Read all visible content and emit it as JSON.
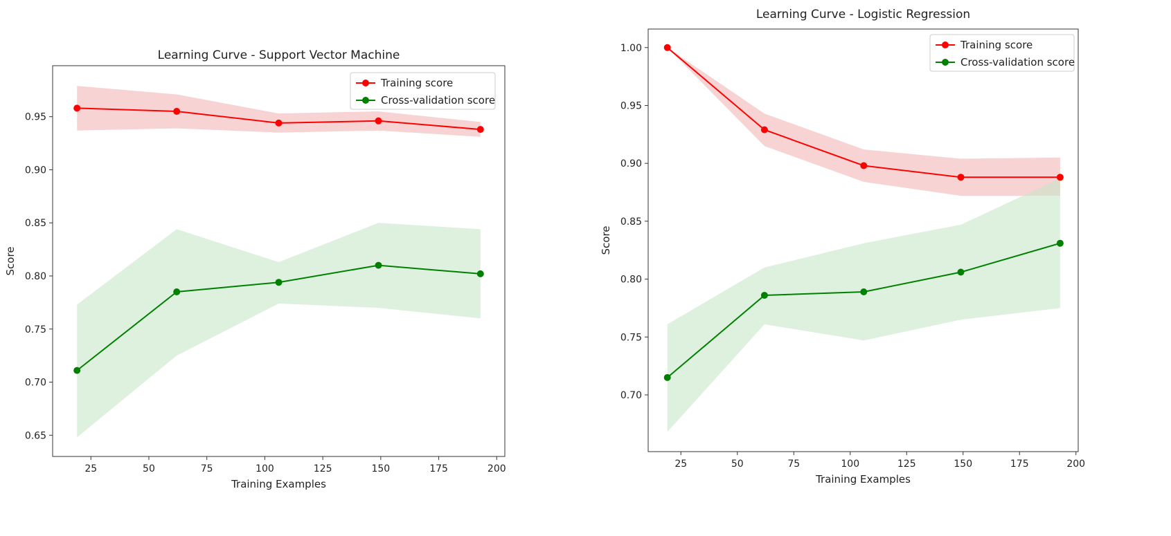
{
  "chart_data": [
    {
      "type": "line",
      "title": "Learning Curve - Support Vector Machine",
      "xlabel": "Training Examples",
      "ylabel": "Score",
      "x": [
        19,
        62,
        106,
        149,
        193
      ],
      "xlim": [
        8.5,
        203.5
      ],
      "ylim": [
        0.63,
        0.998
      ],
      "xticks": [
        25,
        50,
        75,
        100,
        125,
        150,
        175,
        200
      ],
      "yticks": [
        0.65,
        0.7,
        0.75,
        0.8,
        0.85,
        0.9,
        0.95
      ],
      "grid": false,
      "legend_position": "top-right",
      "series": [
        {
          "name": "Training score",
          "color": "#ff0000",
          "band_color": "#f4b6b6",
          "values": [
            0.958,
            0.955,
            0.944,
            0.946,
            0.938
          ],
          "upper": [
            0.979,
            0.971,
            0.953,
            0.955,
            0.945
          ],
          "lower": [
            0.937,
            0.939,
            0.935,
            0.937,
            0.931
          ]
        },
        {
          "name": "Cross-validation score",
          "color": "#008000",
          "band_color": "#c8e6c8",
          "values": [
            0.711,
            0.785,
            0.794,
            0.81,
            0.802
          ],
          "upper": [
            0.773,
            0.844,
            0.813,
            0.85,
            0.844
          ],
          "lower": [
            0.648,
            0.725,
            0.774,
            0.77,
            0.76
          ]
        }
      ]
    },
    {
      "type": "line",
      "title": "Learning Curve - Logistic Regression",
      "xlabel": "Training Examples",
      "ylabel": "Score",
      "x": [
        19,
        62,
        106,
        149,
        193
      ],
      "xlim": [
        10.5,
        201.0
      ],
      "ylim": [
        0.651,
        1.016
      ],
      "xticks": [
        25,
        50,
        75,
        100,
        125,
        150,
        175,
        200
      ],
      "yticks": [
        0.7,
        0.75,
        0.8,
        0.85,
        0.9,
        0.95,
        1.0
      ],
      "grid": false,
      "legend_position": "top-right",
      "series": [
        {
          "name": "Training score",
          "color": "#ff0000",
          "band_color": "#f4b6b6",
          "values": [
            1.0,
            0.929,
            0.898,
            0.888,
            0.888
          ],
          "upper": [
            1.0,
            0.943,
            0.912,
            0.904,
            0.905
          ],
          "lower": [
            1.0,
            0.915,
            0.884,
            0.872,
            0.872
          ]
        },
        {
          "name": "Cross-validation score",
          "color": "#008000",
          "band_color": "#c8e6c8",
          "values": [
            0.715,
            0.786,
            0.789,
            0.806,
            0.831
          ],
          "upper": [
            0.761,
            0.81,
            0.831,
            0.847,
            0.887
          ],
          "lower": [
            0.668,
            0.761,
            0.747,
            0.765,
            0.775
          ]
        }
      ]
    }
  ]
}
